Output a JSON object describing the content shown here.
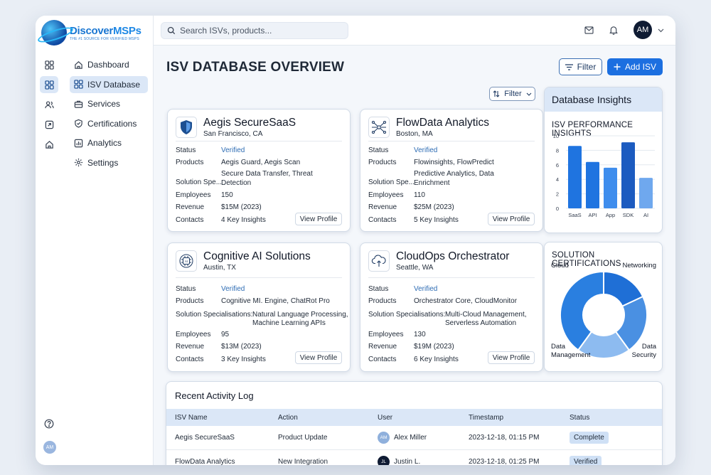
{
  "brand": {
    "name_part1": "Discover",
    "name_part2": "MSPs",
    "tagline": "THE #1 SOURCE FOR VERIFIED MSPS"
  },
  "sidebar": {
    "items": [
      {
        "label": "Dashboard",
        "icon": "home-icon"
      },
      {
        "label": "ISV Database",
        "icon": "grid-icon",
        "active": true
      },
      {
        "label": "Services",
        "icon": "briefcase-icon"
      },
      {
        "label": "Certifications",
        "icon": "shield-check-icon"
      },
      {
        "label": "Analytics",
        "icon": "bar-chart-icon"
      },
      {
        "label": "Settings",
        "icon": "gear-icon"
      }
    ],
    "avatar_initials": "AM"
  },
  "topbar": {
    "search_placeholder": "Search ISVs, products...",
    "avatar_initials": "AM"
  },
  "page": {
    "title": "ISV DATABASE OVERVIEW",
    "filter_label": "Filter",
    "add_label": "Add ISV",
    "filter2_label": "Filter"
  },
  "labels": {
    "status": "Status",
    "products": "Products",
    "solution_short": "Solution Spe...",
    "solution_full": "Solution Specialisations:",
    "employees": "Employees",
    "revenue": "Revenue",
    "contacts": "Contacts",
    "view_profile": "View Profile"
  },
  "isvs": [
    {
      "name": "Aegis SecureSaaS",
      "location": "San Francisco, CA",
      "status": "Verified",
      "products": "Aegis Guard, Aegis Scan",
      "solutions": [
        "Secure Data Transfer, Threat",
        "Detection"
      ],
      "employees": "150",
      "revenue": "$15M (2023)",
      "contacts": "4 Key Insights"
    },
    {
      "name": "FlowData Analytics",
      "location": "Boston, MA",
      "status": "Verified",
      "products": "Flowinsights, FlowPredict",
      "solutions": [
        "Predictive Analytics, Data",
        "Enrichment"
      ],
      "employees": "110",
      "revenue": "$25M (2023)",
      "contacts": "5 Key Insights"
    },
    {
      "name": "Cognitive AI Solutions",
      "location": "Austin, TX",
      "status": "Verified",
      "products": "Cognitive MI. Engine, ChatRot Pro",
      "solutions": [
        "Natural Language Processing,",
        "Machine Learning APIs"
      ],
      "employees": "95",
      "revenue": "$13M (2023)",
      "contacts": "3 Key Insights"
    },
    {
      "name": "CloudOps Orchestrator",
      "location": "Seattle, WA",
      "status": "Verified",
      "products": "Orchestrator Core, CloudMonitor",
      "solutions": [
        "Multi-Cloud Management,",
        "Serverless Automation"
      ],
      "employees": "130",
      "revenue": "$19M (2023)",
      "contacts": "6 Key Insights"
    }
  ],
  "insights": {
    "header": "Database Insights",
    "performance_title": "ISV PERFORMANCE INSIGHTS",
    "certifications_title": "SOLUTION CERTIFICATIONS"
  },
  "chart_data": [
    {
      "type": "bar",
      "title": "ISV PERFORMANCE INSIGHTS",
      "categories": [
        "SaaS",
        "API",
        "App",
        "SDK",
        "AI"
      ],
      "values": [
        8.6,
        6.4,
        5.6,
        9.1,
        4.2
      ],
      "ylim": [
        0,
        10
      ],
      "yticks": [
        0,
        2,
        4,
        6,
        8,
        10
      ],
      "grid": true,
      "colors": [
        "#1f74e0",
        "#1f74e0",
        "#3e8ded",
        "#1c5bc0",
        "#6fa8ee"
      ]
    },
    {
      "type": "pie",
      "title": "SOLUTION CERTIFICATIONS",
      "categories": [
        "Networking",
        "Data Security",
        "Data Management",
        "Cloud"
      ],
      "values": [
        18,
        22,
        20,
        40
      ],
      "colors": [
        "#1f6fd6",
        "#4a90e2",
        "#8dbbf0",
        "#2a7fe0"
      ]
    }
  ],
  "activity": {
    "title": "Recent Activity Log",
    "columns": [
      "ISV Name",
      "Action",
      "User",
      "Timestamp",
      "Status"
    ],
    "rows": [
      {
        "isv": "Aegis SecureSaaS",
        "action": "Product Update",
        "user": "Alex Miller",
        "user_initials": "AM",
        "timestamp": "2023-12-18, 01:15 PM",
        "status": "Complete"
      },
      {
        "isv": "FlowData Analytics",
        "action": "New Integration",
        "user": "Justin L.",
        "user_initials": "JL",
        "timestamp": "2023-12-18, 01:25 PM",
        "status": "Verified"
      }
    ]
  }
}
